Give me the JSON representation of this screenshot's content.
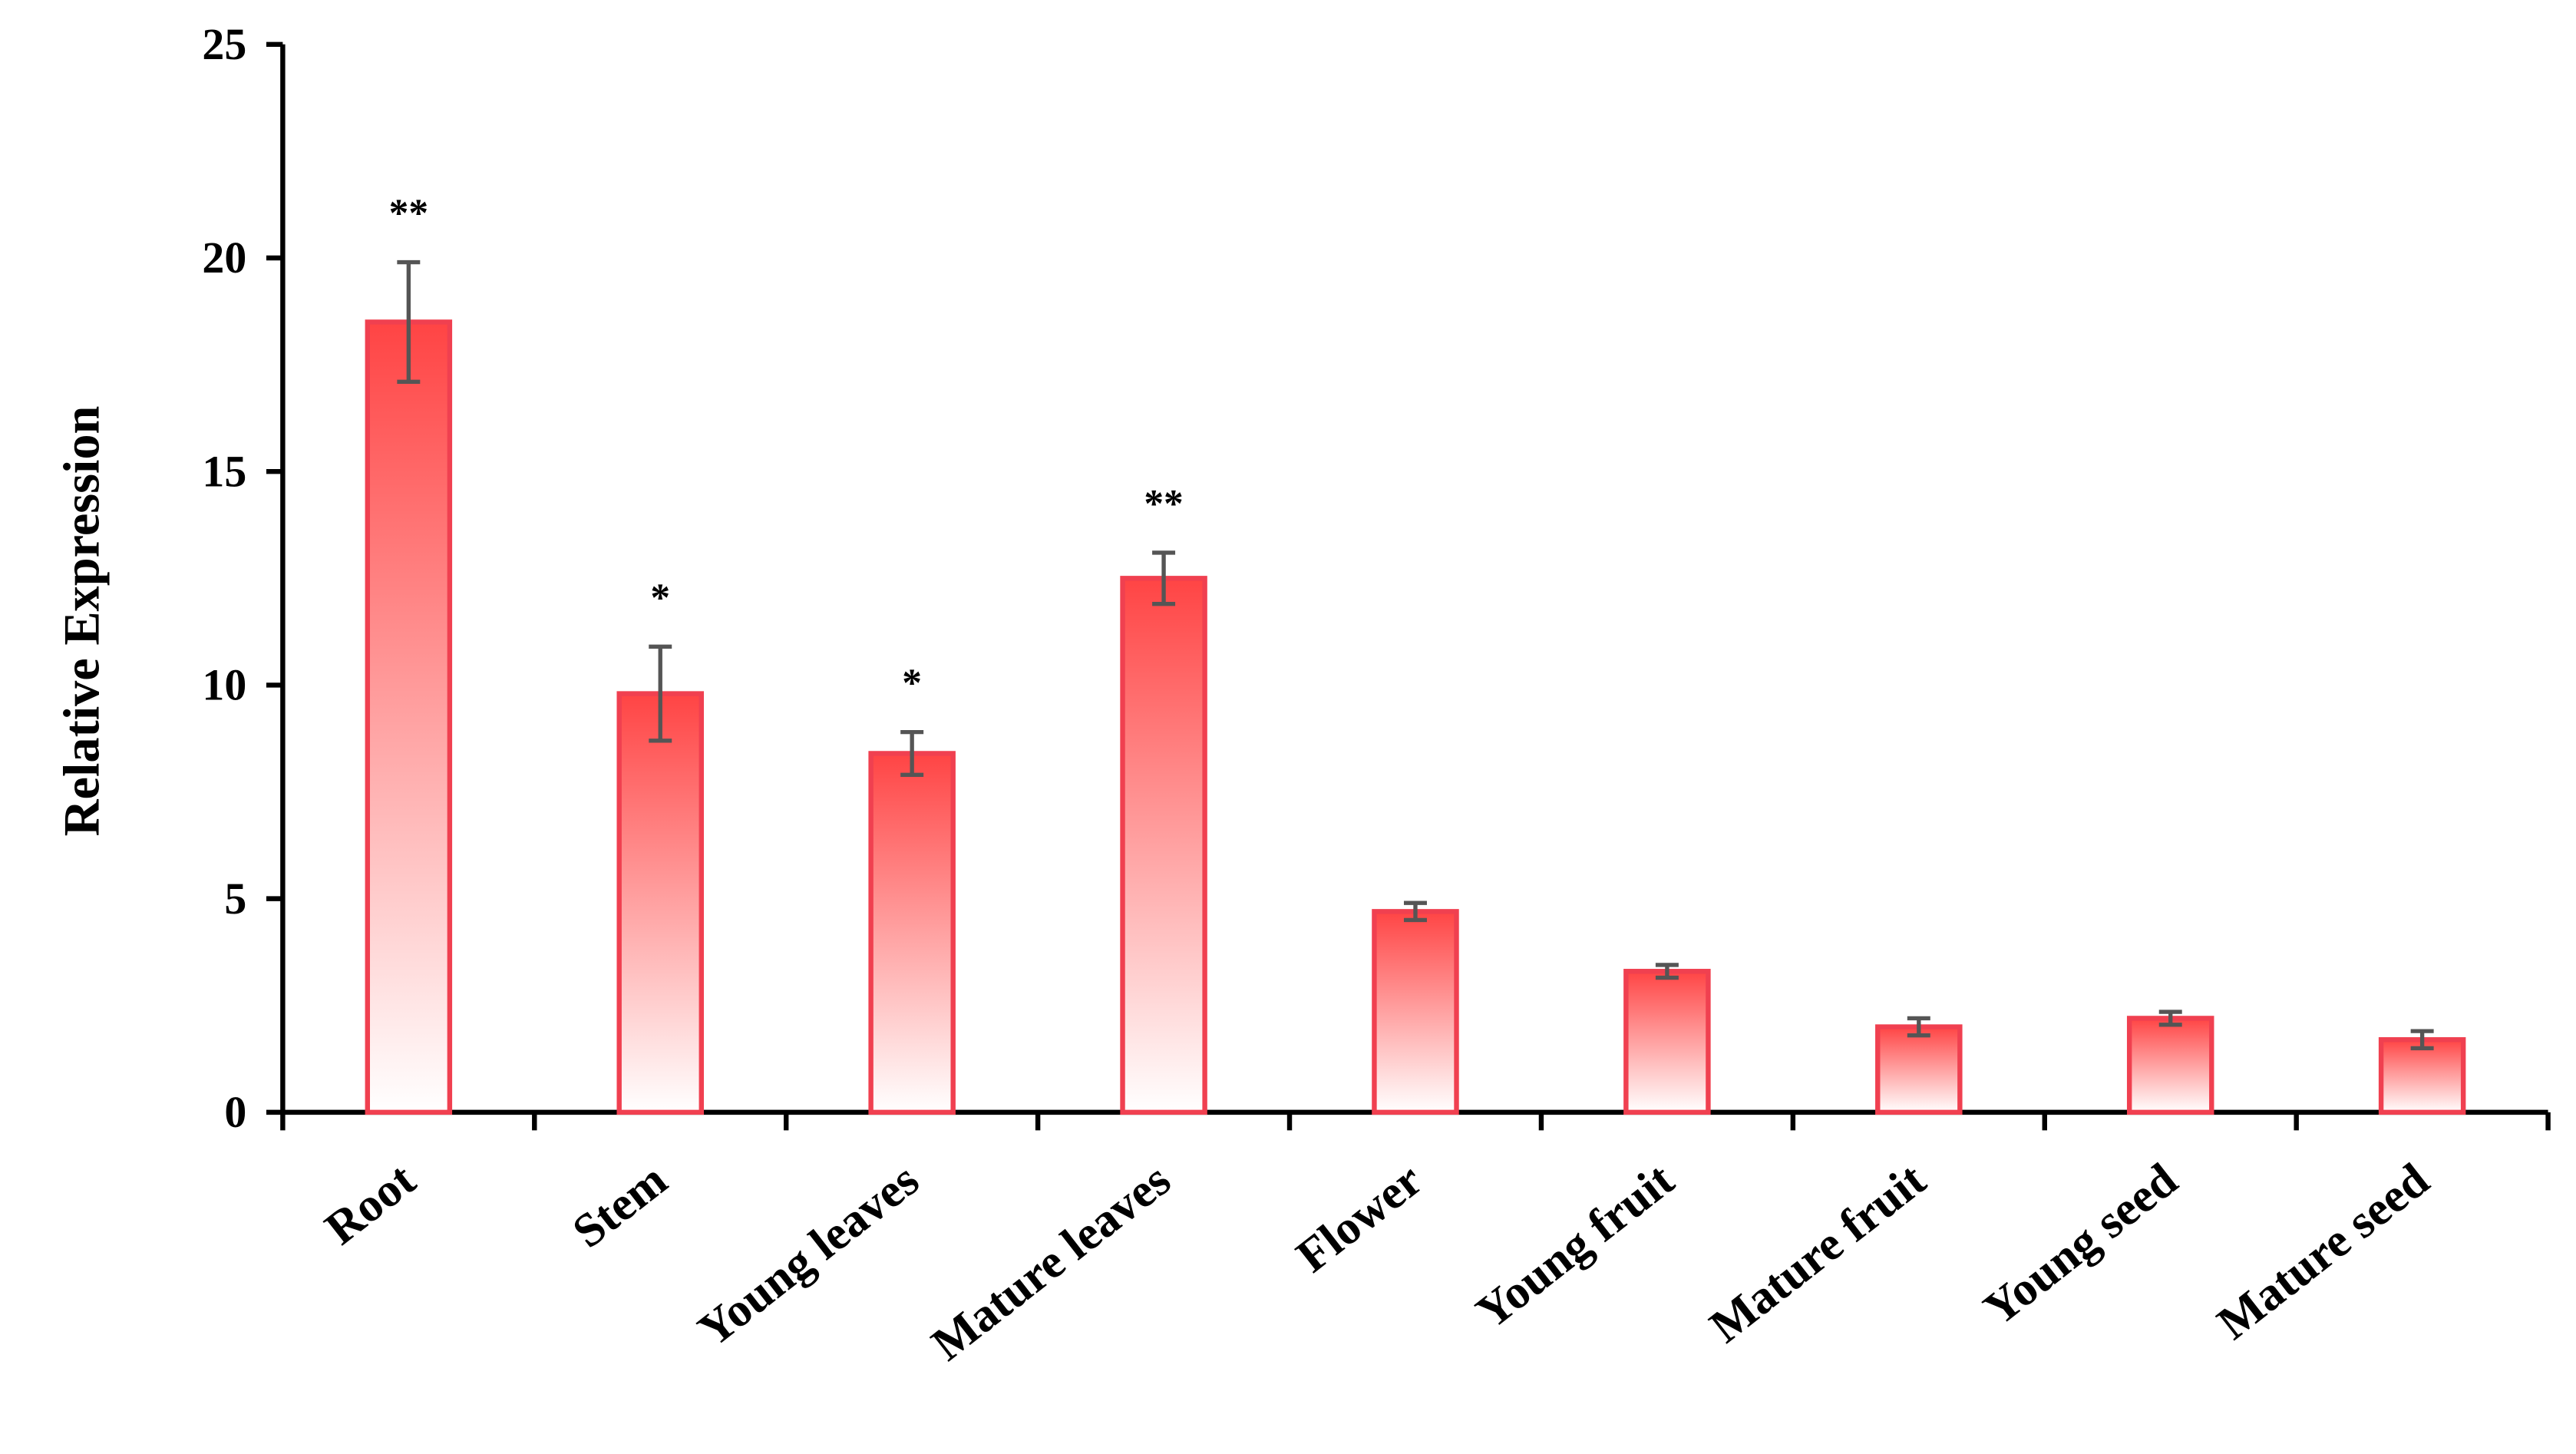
{
  "chart_data": {
    "type": "bar",
    "ylabel": "Relative Expression",
    "categories": [
      "Root",
      "Stem",
      "Young leaves",
      "Mature leaves",
      "Flower",
      "Young fruit",
      "Mature fruit",
      "Young seed",
      "Mature seed"
    ],
    "values": [
      18.5,
      9.8,
      8.4,
      12.5,
      4.7,
      3.3,
      2.0,
      2.2,
      1.7
    ],
    "errors": [
      1.4,
      1.1,
      0.5,
      0.6,
      0.2,
      0.15,
      0.2,
      0.15,
      0.2
    ],
    "significance": [
      "**",
      "*",
      "*",
      "**",
      null,
      null,
      null,
      null,
      null
    ],
    "color": "#ff4444",
    "ylim": [
      0,
      25
    ],
    "yticks": [
      0,
      5,
      10,
      15,
      20,
      25
    ],
    "grid": false
  }
}
